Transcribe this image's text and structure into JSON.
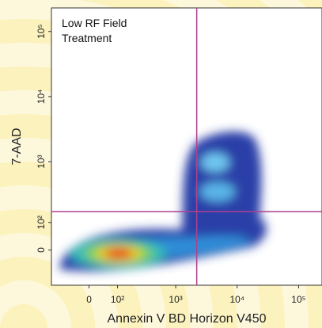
{
  "chart_data": {
    "type": "density",
    "title": "Low RF Field Treatment",
    "x_label": "Annexin V BD Horizon V450",
    "y_label": "7-AAD",
    "xscale": "biexponential",
    "yscale": "biexponential",
    "xlim": [
      -150,
      240000
    ],
    "ylim": [
      -140,
      230000
    ],
    "xticks": [
      0,
      {
        "value": 100,
        "label": "10²"
      },
      {
        "value": 1000,
        "label": "10³"
      },
      {
        "value": 10000,
        "label": "10⁴"
      },
      {
        "value": 100000,
        "label": "10⁵"
      }
    ],
    "yticks": [
      0,
      {
        "value": 100,
        "label": "10²"
      },
      {
        "value": 1000,
        "label": "10³"
      },
      {
        "value": 10000,
        "label": "10⁴"
      },
      {
        "value": 100000,
        "label": "10⁵"
      }
    ],
    "gates": {
      "x": 2200,
      "y": 160,
      "color": "#b0408f"
    }
  }
}
